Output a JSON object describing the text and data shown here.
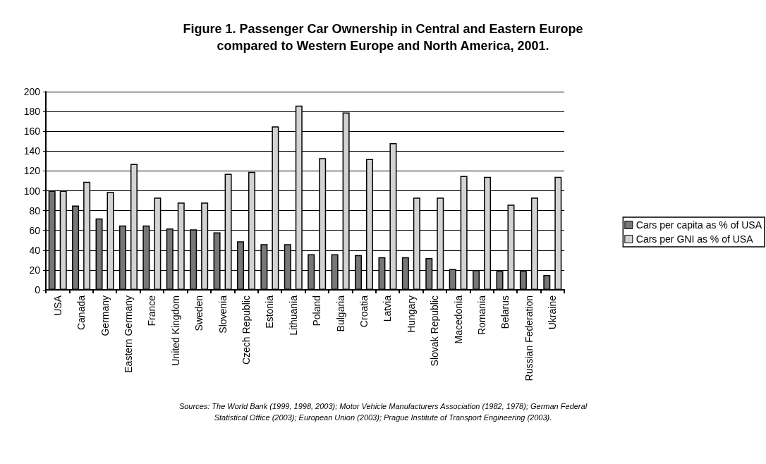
{
  "chart_data": {
    "type": "bar",
    "title": "Figure 1. Passenger Car Ownership in Central and Eastern Europe\ncompared to Western Europe and North America, 2001.",
    "categories": [
      "USA",
      "Canada",
      "Germany",
      "Eastern Germany",
      "France",
      "United Kingdom",
      "Sweden",
      "Slovenia",
      "Czech Republic",
      "Estonia",
      "Lithuania",
      "Poland",
      "Bulgaria",
      "Croatia",
      "Latvia",
      "Hungary",
      "Slovak Republic",
      "Macedonia",
      "Romania",
      "Belarus",
      "Russian Federation",
      "Ukraine"
    ],
    "series": [
      {
        "name": "Cars per capita as % of USA",
        "color": "#777777",
        "values": [
          100,
          85,
          72,
          65,
          65,
          62,
          61,
          58,
          49,
          46,
          46,
          36,
          36,
          35,
          33,
          33,
          32,
          21,
          20,
          19,
          19,
          15
        ]
      },
      {
        "name": "Cars per GNI as % of USA",
        "color": "#d3d3d3",
        "values": [
          100,
          109,
          99,
          127,
          93,
          88,
          88,
          117,
          119,
          165,
          186,
          133,
          179,
          132,
          148,
          93,
          93,
          115,
          114,
          86,
          93,
          114
        ]
      }
    ],
    "ylim": [
      0,
      200
    ],
    "yticks": [
      0,
      20,
      40,
      60,
      80,
      100,
      120,
      140,
      160,
      180,
      200
    ],
    "grid": "y",
    "legend": "right",
    "annotations": [
      "Sources: The World Bank (1999, 1998, 2003); Motor Vehicle Manufacturers Association (1982, 1978); German Federal\nStatistical Office (2003); European Union (2003); Prague Institute of Transport Engineering (2003)."
    ]
  }
}
